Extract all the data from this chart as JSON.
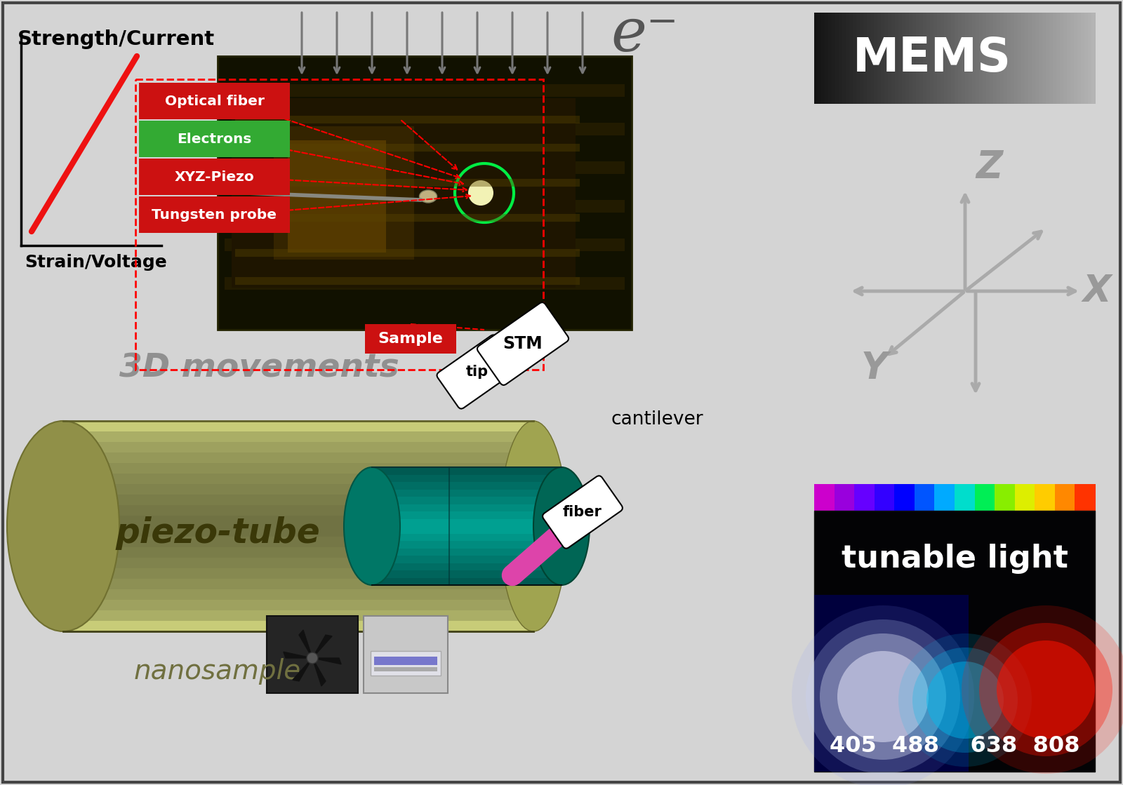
{
  "bg_color": "#d4d4d4",
  "graph_labels": {
    "y_label": "Strength/Current",
    "x_label": "Strain/Voltage"
  },
  "labels": {
    "optical_fiber": "Optical fiber",
    "electrons": "Electrons",
    "xyz_piezo": "XYZ-Piezo",
    "tungsten": "Tungsten probe",
    "sample": "Sample",
    "movements": "3D movements",
    "piezo_tube": "piezo-tube",
    "nanosample": "nanosample",
    "cantilever": "cantilever",
    "fiber": "fiber",
    "tip": "tip",
    "stm": "STM",
    "mems": "MEMS",
    "tunable": "tunable light",
    "wavelengths": "405  488    638  808",
    "electron_symbol": "e⁻",
    "z_label": "Z",
    "x_label": "X",
    "y_label_axis": "Y"
  },
  "colors": {
    "red_label": "#cc1111",
    "green_label": "#33aa33",
    "red_line": "#ee1111",
    "electron_arrows": "#888888",
    "axis_color": "#999999",
    "text_dark": "#111111",
    "text_white": "#ffffff",
    "tube_yellow": "#c8cc7a",
    "tube_dark": "#909050",
    "inner_teal": "#009988",
    "inner_dark": "#006655",
    "fiber_magenta": "#dd44aa",
    "bg_color": "#d4d4d4"
  }
}
